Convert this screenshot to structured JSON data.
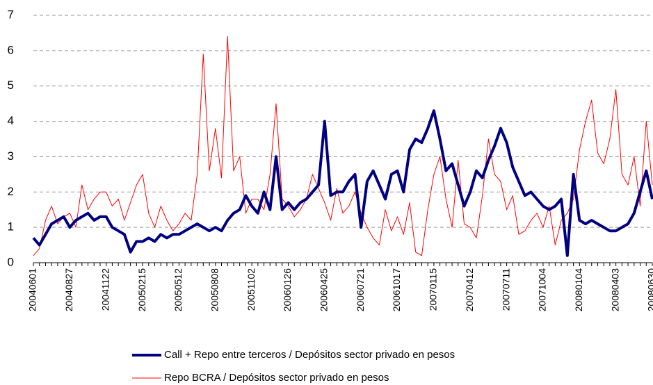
{
  "chart_data": {
    "type": "line",
    "categories": [
      "20040601",
      null,
      null,
      null,
      null,
      null,
      "20040827",
      null,
      null,
      null,
      null,
      null,
      "20041122",
      null,
      null,
      null,
      null,
      null,
      "20050215",
      null,
      null,
      null,
      null,
      null,
      "20050512",
      null,
      null,
      null,
      null,
      null,
      "20050808",
      null,
      null,
      null,
      null,
      null,
      "20051102",
      null,
      null,
      null,
      null,
      null,
      "20060126",
      null,
      null,
      null,
      null,
      null,
      "20060425",
      null,
      null,
      null,
      null,
      null,
      "20060721",
      null,
      null,
      null,
      null,
      null,
      "20061017",
      null,
      null,
      null,
      null,
      null,
      "20070115",
      null,
      null,
      null,
      null,
      null,
      "20070412",
      null,
      null,
      null,
      null,
      null,
      "20070711",
      null,
      null,
      null,
      null,
      null,
      "20071004",
      null,
      null,
      null,
      null,
      null,
      "20080104",
      null,
      null,
      null,
      null,
      null,
      "20080403",
      null,
      null,
      null,
      null,
      null,
      "20080630"
    ],
    "series": [
      {
        "name": "Call + Repo entre terceros / Depósitos sector privado en pesos",
        "color": "#000080",
        "values": [
          0.7,
          0.5,
          0.8,
          1.1,
          1.2,
          1.3,
          1.0,
          1.2,
          1.3,
          1.4,
          1.2,
          1.3,
          1.3,
          1.0,
          0.9,
          0.8,
          0.3,
          0.6,
          0.6,
          0.7,
          0.6,
          0.8,
          0.7,
          0.8,
          0.8,
          0.9,
          1.0,
          1.1,
          1.0,
          0.9,
          1.0,
          0.9,
          1.2,
          1.4,
          1.5,
          1.9,
          1.6,
          1.4,
          2.0,
          1.5,
          3.0,
          1.5,
          1.7,
          1.5,
          1.7,
          1.8,
          2.0,
          2.2,
          4.0,
          1.9,
          2.0,
          2.0,
          2.3,
          2.5,
          1.0,
          2.3,
          2.6,
          2.2,
          1.8,
          2.5,
          2.6,
          2.0,
          3.2,
          3.5,
          3.4,
          3.8,
          4.3,
          3.5,
          2.6,
          2.8,
          2.2,
          1.6,
          2.0,
          2.6,
          2.4,
          2.9,
          3.3,
          3.8,
          3.4,
          2.7,
          2.3,
          1.9,
          2.0,
          1.8,
          1.6,
          1.5,
          1.6,
          1.8,
          0.2,
          2.5,
          1.2,
          1.1,
          1.2,
          1.1,
          1.0,
          0.9,
          0.9,
          1.0,
          1.1,
          1.4,
          2.0,
          2.6,
          1.8
        ]
      },
      {
        "name": "Repo BCRA / Depósitos sector privado en pesos",
        "color": "#ff0000",
        "values": [
          0.2,
          0.4,
          1.2,
          1.6,
          1.1,
          1.3,
          1.4,
          1.0,
          2.2,
          1.5,
          1.8,
          2.0,
          2.0,
          1.6,
          1.8,
          1.2,
          1.7,
          2.2,
          2.5,
          1.4,
          1.0,
          1.6,
          1.2,
          0.9,
          1.1,
          1.4,
          1.2,
          2.5,
          5.9,
          2.6,
          3.8,
          2.4,
          6.4,
          2.6,
          3.0,
          1.4,
          1.8,
          1.8,
          1.5,
          2.5,
          4.5,
          1.8,
          1.6,
          1.3,
          1.5,
          1.8,
          2.5,
          2.1,
          1.7,
          1.2,
          2.1,
          1.4,
          1.6,
          2.0,
          1.4,
          1.0,
          0.7,
          0.5,
          1.5,
          0.9,
          1.3,
          0.8,
          1.7,
          0.3,
          0.2,
          1.5,
          2.5,
          3.0,
          1.8,
          1.0,
          2.9,
          1.1,
          1.0,
          0.7,
          1.9,
          3.5,
          2.5,
          2.3,
          1.5,
          1.9,
          0.8,
          0.9,
          1.2,
          1.4,
          1.0,
          1.6,
          0.5,
          1.2,
          1.4,
          1.8,
          3.2,
          4.0,
          4.6,
          3.1,
          2.8,
          3.5,
          4.9,
          2.5,
          2.2,
          3.0,
          1.6,
          4.0,
          2.2
        ]
      }
    ],
    "ylim": [
      0,
      7
    ],
    "yticks": [
      0,
      1,
      2,
      3,
      4,
      5,
      6,
      7
    ],
    "grid": true
  }
}
